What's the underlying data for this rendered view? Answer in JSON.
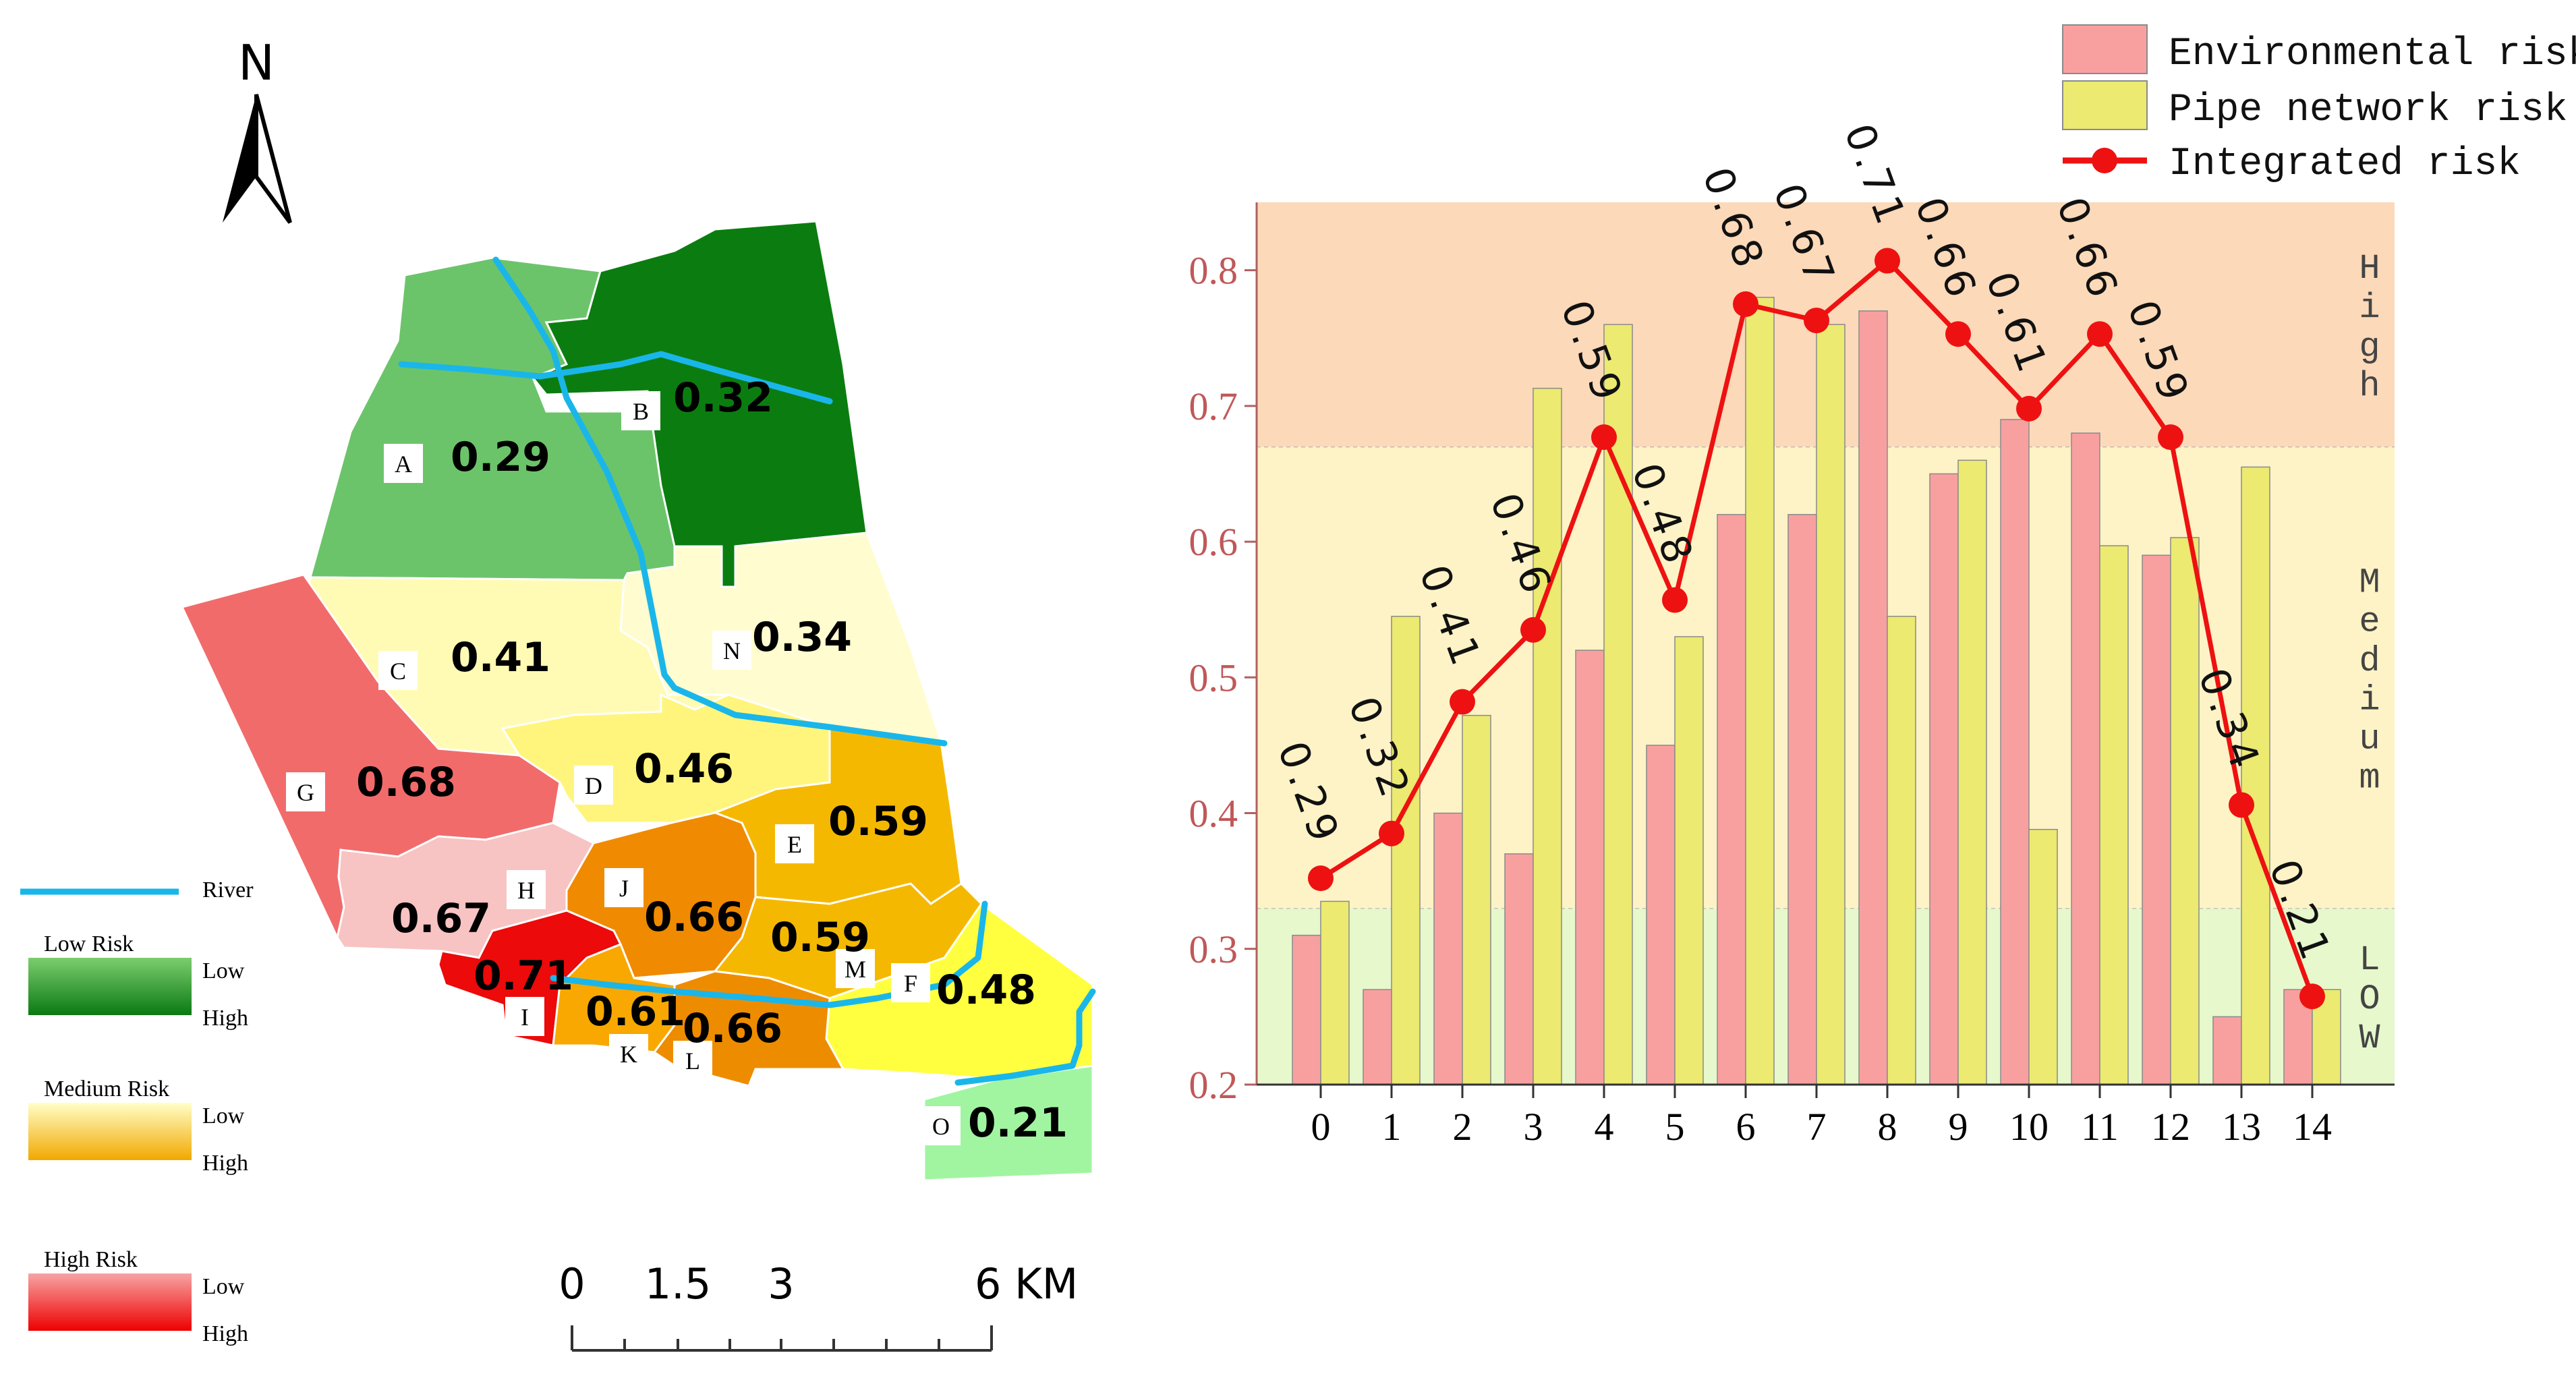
{
  "map": {
    "north_label": "N",
    "legend": {
      "river_label": "River",
      "groups": [
        {
          "title": "Low Risk",
          "low_label": "Low",
          "high_label": "High",
          "low_color": "#7ccd6e",
          "high_color": "#0a7a12"
        },
        {
          "title": "Medium Risk",
          "low_label": "Low",
          "high_label": "High",
          "low_color": "#ffffc8",
          "high_color": "#f2a800"
        },
        {
          "title": "High Risk",
          "low_label": "Low",
          "high_label": "High",
          "low_color": "#f7a4a4",
          "high_color": "#ee0000"
        }
      ]
    },
    "scale_bar": {
      "labels": [
        "0",
        "1.5",
        "3",
        "6 KM"
      ]
    },
    "river_color": "#1ab6ea",
    "zones": [
      {
        "letter": "A",
        "value": "0.29",
        "color": "#6cc46a"
      },
      {
        "letter": "B",
        "value": "0.32",
        "color": "#0b7d10"
      },
      {
        "letter": "C",
        "value": "0.41",
        "color": "#fffbb4"
      },
      {
        "letter": "D",
        "value": "0.46",
        "color": "#fff57c"
      },
      {
        "letter": "E",
        "value": "0.59",
        "color": "#f5b800"
      },
      {
        "letter": "F",
        "value": "0.48",
        "color": "#ffff40"
      },
      {
        "letter": "G",
        "value": "0.68",
        "color": "#f26b6b"
      },
      {
        "letter": "H",
        "value": "0.67",
        "color": "#f7c3c3"
      },
      {
        "letter": "I",
        "value": "0.71",
        "color": "#ec0a0a"
      },
      {
        "letter": "J",
        "value": "0.66",
        "color": "#f08a00"
      },
      {
        "letter": "K",
        "value": "0.61",
        "color": "#f8a800"
      },
      {
        "letter": "L",
        "value": "0.66",
        "color": "#ee8c00"
      },
      {
        "letter": "M",
        "value": "0.59",
        "color": "#f5b800"
      },
      {
        "letter": "N",
        "value": "0.34",
        "color": "#fffcd0"
      },
      {
        "letter": "O",
        "value": "0.21",
        "color": "#a1f5a1"
      }
    ]
  },
  "chart_data": {
    "type": "bar",
    "categories": [
      "0",
      "1",
      "2",
      "3",
      "4",
      "5",
      "6",
      "7",
      "8",
      "9",
      "10",
      "11",
      "12",
      "13",
      "14"
    ],
    "series": [
      {
        "name": "Environmental risk",
        "type": "bar",
        "color": "#f8a0a0",
        "values": [
          0.31,
          0.27,
          0.4,
          0.37,
          0.52,
          0.45,
          0.62,
          0.62,
          0.77,
          0.65,
          0.69,
          0.68,
          0.59,
          0.25,
          0.27
        ]
      },
      {
        "name": "Pipe network risk",
        "type": "bar",
        "color": "#ecea70",
        "values": [
          0.335,
          0.545,
          0.472,
          0.713,
          0.76,
          0.53,
          0.78,
          0.76,
          0.545,
          0.66,
          0.388,
          0.597,
          0.603,
          0.655,
          0.27
        ]
      },
      {
        "name": "Integrated risk",
        "type": "line",
        "color": "#ee1111",
        "values": [
          0.352,
          0.385,
          0.482,
          0.535,
          0.677,
          0.557,
          0.775,
          0.763,
          0.807,
          0.753,
          0.698,
          0.753,
          0.677,
          0.406,
          0.265
        ],
        "labels": [
          "0.29",
          "0.32",
          "0.41",
          "0.46",
          "0.59",
          "0.48",
          "0.68",
          "0.67",
          "0.71",
          "0.66",
          "0.61",
          "0.66",
          "0.59",
          "0.34",
          "0.21"
        ]
      }
    ],
    "ylim": [
      0.2,
      0.85
    ],
    "yticks": [
      "0.2",
      "0.3",
      "0.4",
      "0.5",
      "0.6",
      "0.7",
      "0.8"
    ],
    "bands": [
      {
        "label": "LOW",
        "from": 0.2,
        "to": 0.33,
        "color": "#e6f8cc"
      },
      {
        "label": "Medium",
        "from": 0.33,
        "to": 0.67,
        "color": "#fdf3c6"
      },
      {
        "label": "High",
        "from": 0.67,
        "to": 0.85,
        "color": "#fbd9b9"
      }
    ],
    "legend_position": "top-right",
    "xlabel": "",
    "ylabel": "",
    "title": ""
  }
}
